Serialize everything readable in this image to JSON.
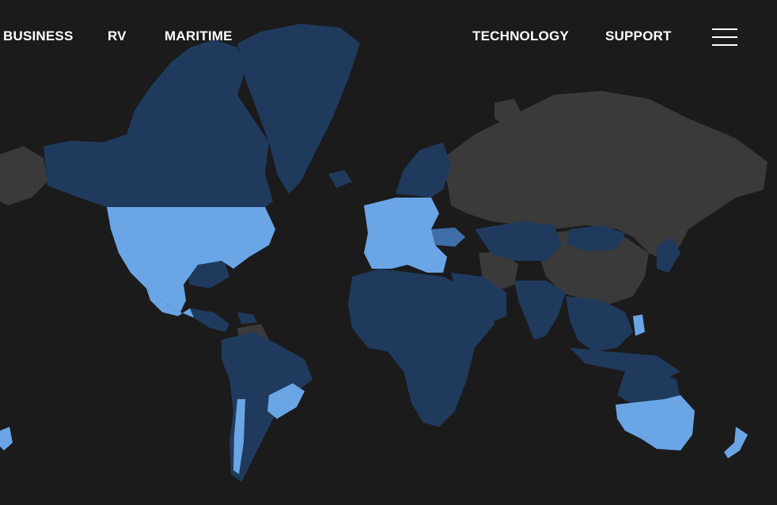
{
  "nav": {
    "business": "BUSINESS",
    "rv": "RV",
    "maritime": "MARITIME",
    "technology": "TECHNOLOGY",
    "support": "SUPPORT",
    "menu_icon": "hamburger-menu-icon"
  },
  "map": {
    "type": "coverage-world-map",
    "colors": {
      "background": "#1b1b1c",
      "no_coverage": "#3a3a3b",
      "partial_coverage": "#1f3a5c",
      "full_coverage": "#6aa6e6",
      "medium_coverage": "#3f6fa8"
    }
  }
}
